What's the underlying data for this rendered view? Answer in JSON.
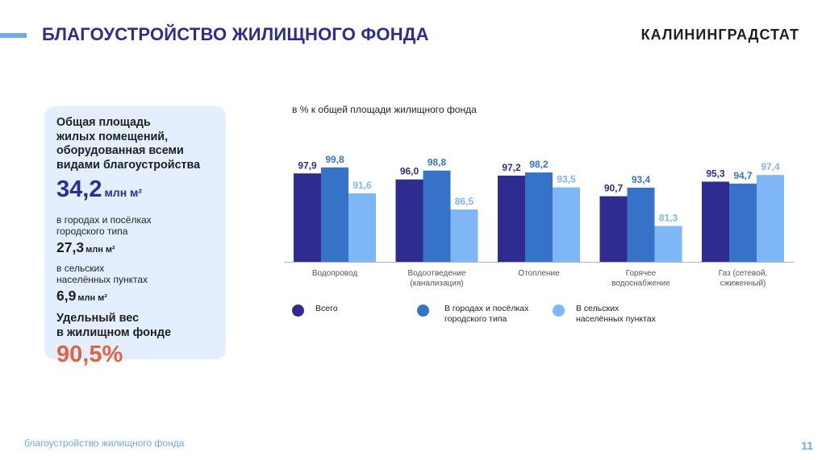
{
  "header": {
    "title": "БЛАГОУСТРОЙСТВО ЖИЛИЩНОГО ФОНДА",
    "brand": "КАЛИНИНГРАДСТАТ"
  },
  "card": {
    "heading_lines": [
      "Общая площадь",
      "жилых помещений,",
      "оборудованная всеми",
      "видами благоустройства"
    ],
    "total_value": "34,2",
    "total_unit": "млн м²",
    "urban_label_lines": [
      "в  городах и посёлках",
      "городского типа"
    ],
    "urban_value": "27,3",
    "urban_unit": "млн м²",
    "rural_label_lines": [
      "в сельских",
      "населённых пунктах"
    ],
    "rural_value": "6,9",
    "rural_unit": "млн м²",
    "share_heading_lines": [
      "Удельный вес",
      "в жилищном фонде"
    ],
    "share_value": "90,5%"
  },
  "chart_subtitle": "в % к общей площади жилищного фонда",
  "chart_data": {
    "type": "bar",
    "categories": [
      [
        "Водопровод"
      ],
      [
        "Водоотведение",
        "(канализация)"
      ],
      [
        "Отопление"
      ],
      [
        "Горячее",
        "водоснабжение"
      ],
      [
        "Газ (сетевой,",
        "сжиженный)"
      ]
    ],
    "series": [
      {
        "name": "Всего",
        "color": "#2e2d8f",
        "values": [
          97.9,
          96.0,
          97.2,
          90.7,
          95.3
        ],
        "labels": [
          "97,9",
          "96,0",
          "97,2",
          "90,7",
          "95,3"
        ]
      },
      {
        "name": "В  городах и посёлках городского типа",
        "color": "#3673c8",
        "values": [
          99.8,
          98.8,
          98.2,
          93.4,
          94.7
        ],
        "labels": [
          "99,8",
          "98,8",
          "98,2",
          "93,4",
          "94,7"
        ]
      },
      {
        "name": "В сельских населённых пунктах",
        "color": "#7fb6f5",
        "values": [
          91.6,
          86.5,
          93.5,
          81.3,
          97.4
        ],
        "labels": [
          "91,6",
          "86,5",
          "93,5",
          "81,3",
          "97,4"
        ]
      }
    ],
    "ylim": [
      70,
      100
    ]
  },
  "legend": [
    {
      "lines": [
        "Всего"
      ]
    },
    {
      "lines": [
        "В  городах и посёлках",
        "городского типа"
      ]
    },
    {
      "lines": [
        "В сельских",
        "населённых пунктах"
      ]
    }
  ],
  "footer": {
    "text": "благоустройство жилищного фонда",
    "page_number": "11"
  }
}
